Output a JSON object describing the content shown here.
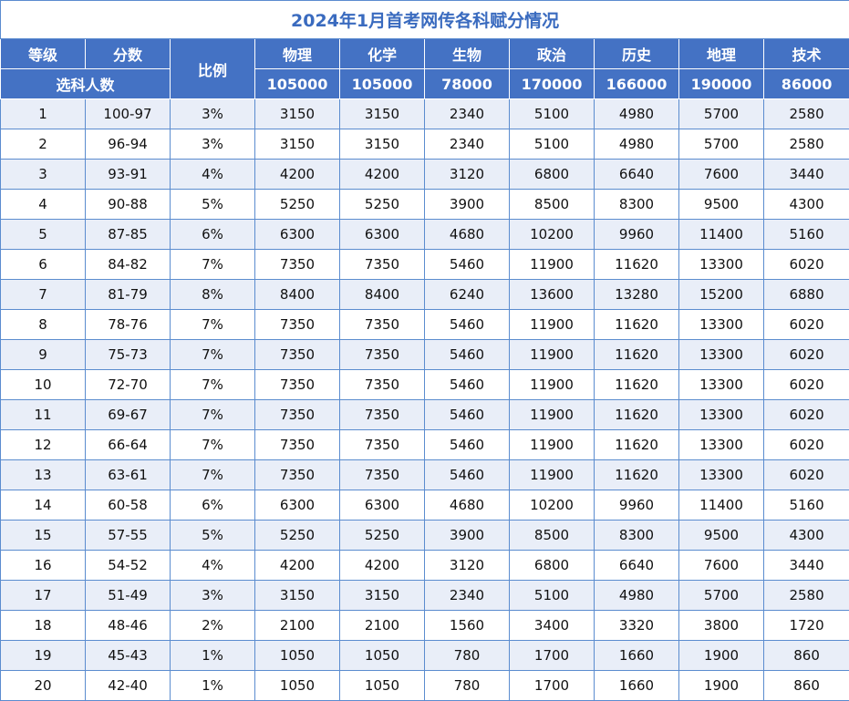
{
  "title": "2024年1月首考网传各科赋分情况",
  "header": {
    "grade_label": "等级",
    "score_label": "分数",
    "ratio_label": "比例",
    "count_label": "选科人数",
    "subjects": [
      {
        "name": "物理",
        "count": "105000"
      },
      {
        "name": "化学",
        "count": "105000"
      },
      {
        "name": "生物",
        "count": "78000"
      },
      {
        "name": "政治",
        "count": "170000"
      },
      {
        "name": "历史",
        "count": "166000"
      },
      {
        "name": "地理",
        "count": "190000"
      },
      {
        "name": "技术",
        "count": "86000"
      }
    ]
  },
  "rows": [
    [
      "1",
      "100-97",
      "3%",
      "3150",
      "3150",
      "2340",
      "5100",
      "4980",
      "5700",
      "2580"
    ],
    [
      "2",
      "96-94",
      "3%",
      "3150",
      "3150",
      "2340",
      "5100",
      "4980",
      "5700",
      "2580"
    ],
    [
      "3",
      "93-91",
      "4%",
      "4200",
      "4200",
      "3120",
      "6800",
      "6640",
      "7600",
      "3440"
    ],
    [
      "4",
      "90-88",
      "5%",
      "5250",
      "5250",
      "3900",
      "8500",
      "8300",
      "9500",
      "4300"
    ],
    [
      "5",
      "87-85",
      "6%",
      "6300",
      "6300",
      "4680",
      "10200",
      "9960",
      "11400",
      "5160"
    ],
    [
      "6",
      "84-82",
      "7%",
      "7350",
      "7350",
      "5460",
      "11900",
      "11620",
      "13300",
      "6020"
    ],
    [
      "7",
      "81-79",
      "8%",
      "8400",
      "8400",
      "6240",
      "13600",
      "13280",
      "15200",
      "6880"
    ],
    [
      "8",
      "78-76",
      "7%",
      "7350",
      "7350",
      "5460",
      "11900",
      "11620",
      "13300",
      "6020"
    ],
    [
      "9",
      "75-73",
      "7%",
      "7350",
      "7350",
      "5460",
      "11900",
      "11620",
      "13300",
      "6020"
    ],
    [
      "10",
      "72-70",
      "7%",
      "7350",
      "7350",
      "5460",
      "11900",
      "11620",
      "13300",
      "6020"
    ],
    [
      "11",
      "69-67",
      "7%",
      "7350",
      "7350",
      "5460",
      "11900",
      "11620",
      "13300",
      "6020"
    ],
    [
      "12",
      "66-64",
      "7%",
      "7350",
      "7350",
      "5460",
      "11900",
      "11620",
      "13300",
      "6020"
    ],
    [
      "13",
      "63-61",
      "7%",
      "7350",
      "7350",
      "5460",
      "11900",
      "11620",
      "13300",
      "6020"
    ],
    [
      "14",
      "60-58",
      "6%",
      "6300",
      "6300",
      "4680",
      "10200",
      "9960",
      "11400",
      "5160"
    ],
    [
      "15",
      "57-55",
      "5%",
      "5250",
      "5250",
      "3900",
      "8500",
      "8300",
      "9500",
      "4300"
    ],
    [
      "16",
      "54-52",
      "4%",
      "4200",
      "4200",
      "3120",
      "6800",
      "6640",
      "7600",
      "3440"
    ],
    [
      "17",
      "51-49",
      "3%",
      "3150",
      "3150",
      "2340",
      "5100",
      "4980",
      "5700",
      "2580"
    ],
    [
      "18",
      "48-46",
      "2%",
      "2100",
      "2100",
      "1560",
      "3400",
      "3320",
      "3800",
      "1720"
    ],
    [
      "19",
      "45-43",
      "1%",
      "1050",
      "1050",
      "780",
      "1700",
      "1660",
      "1900",
      "860"
    ],
    [
      "20",
      "42-40",
      "1%",
      "1050",
      "1050",
      "780",
      "1700",
      "1660",
      "1900",
      "860"
    ]
  ]
}
